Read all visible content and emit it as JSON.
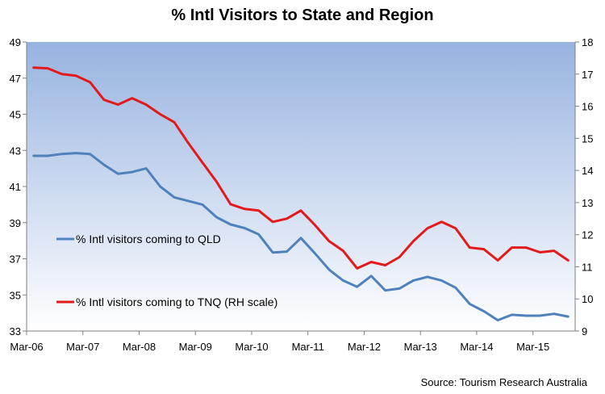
{
  "chart_data": {
    "type": "line",
    "title": "% Intl Visitors to State and Region",
    "source": "Source: Tourism Research Australia",
    "x": [
      "Mar-06",
      "Jun-06",
      "Sep-06",
      "Dec-06",
      "Mar-07",
      "Jun-07",
      "Sep-07",
      "Dec-07",
      "Mar-08",
      "Jun-08",
      "Sep-08",
      "Dec-08",
      "Mar-09",
      "Jun-09",
      "Sep-09",
      "Dec-09",
      "Mar-10",
      "Jun-10",
      "Sep-10",
      "Dec-10",
      "Mar-11",
      "Jun-11",
      "Sep-11",
      "Dec-11",
      "Mar-12",
      "Jun-12",
      "Sep-12",
      "Dec-12",
      "Mar-13",
      "Jun-13",
      "Sep-13",
      "Dec-13",
      "Mar-14",
      "Jun-14",
      "Sep-14",
      "Dec-14",
      "Mar-15",
      "Jun-15",
      "Sep-15"
    ],
    "x_tick_labels": [
      "Mar-06",
      "Mar-07",
      "Mar-08",
      "Mar-09",
      "Mar-10",
      "Mar-11",
      "Mar-12",
      "Mar-13",
      "Mar-14",
      "Mar-15"
    ],
    "y_left": {
      "min": 33,
      "max": 49,
      "ticks": [
        33,
        35,
        37,
        39,
        41,
        43,
        45,
        47,
        49
      ]
    },
    "y_right": {
      "min": 9,
      "max": 18,
      "ticks": [
        9,
        10,
        11,
        12,
        13,
        14,
        15,
        16,
        17,
        18
      ]
    },
    "grid": false,
    "legend_placement": "inside-left",
    "series": [
      {
        "name": "% Intl visitors coming to QLD",
        "axis": "left",
        "color": "#4F81BD",
        "values": [
          42.7,
          42.7,
          42.8,
          42.85,
          42.8,
          42.2,
          41.7,
          41.8,
          42.0,
          41.0,
          40.4,
          40.2,
          40.0,
          39.3,
          38.9,
          38.7,
          38.35,
          37.35,
          37.4,
          38.15,
          37.3,
          36.4,
          35.8,
          35.45,
          36.05,
          35.25,
          35.35,
          35.8,
          36.0,
          35.8,
          35.4,
          34.5,
          34.1,
          33.6,
          33.9,
          33.85,
          33.85,
          33.95,
          33.8
        ]
      },
      {
        "name": "% Intl visitors coming to TNQ (RH scale)",
        "axis": "right",
        "color": "#E31A1C",
        "values": [
          17.2,
          17.18,
          17.0,
          16.95,
          16.75,
          16.2,
          16.05,
          16.25,
          16.05,
          15.75,
          15.5,
          14.85,
          14.25,
          13.65,
          12.95,
          12.8,
          12.75,
          12.4,
          12.5,
          12.75,
          12.3,
          11.8,
          11.5,
          10.95,
          11.15,
          11.05,
          11.3,
          11.8,
          12.2,
          12.4,
          12.2,
          11.6,
          11.55,
          11.2,
          11.6,
          11.6,
          11.45,
          11.5,
          11.2
        ]
      }
    ]
  }
}
